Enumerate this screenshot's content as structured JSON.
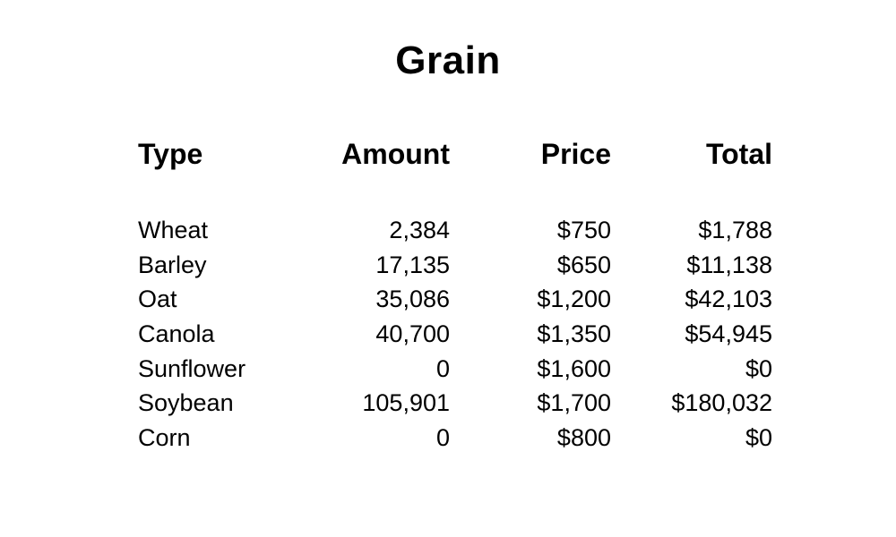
{
  "title": "Grain",
  "columns": [
    "Type",
    "Amount",
    "Price",
    "Total"
  ],
  "rows": [
    {
      "type": "Wheat",
      "amount": "2,384",
      "price": "$750",
      "total": "$1,788"
    },
    {
      "type": "Barley",
      "amount": "17,135",
      "price": "$650",
      "total": "$11,138"
    },
    {
      "type": "Oat",
      "amount": "35,086",
      "price": "$1,200",
      "total": "$42,103"
    },
    {
      "type": "Canola",
      "amount": "40,700",
      "price": "$1,350",
      "total": "$54,945"
    },
    {
      "type": "Sunflower",
      "amount": "0",
      "price": "$1,600",
      "total": "$0"
    },
    {
      "type": "Soybean",
      "amount": "105,901",
      "price": "$1,700",
      "total": "$180,032"
    },
    {
      "type": "Corn",
      "amount": "0",
      "price": "$800",
      "total": "$0"
    }
  ]
}
